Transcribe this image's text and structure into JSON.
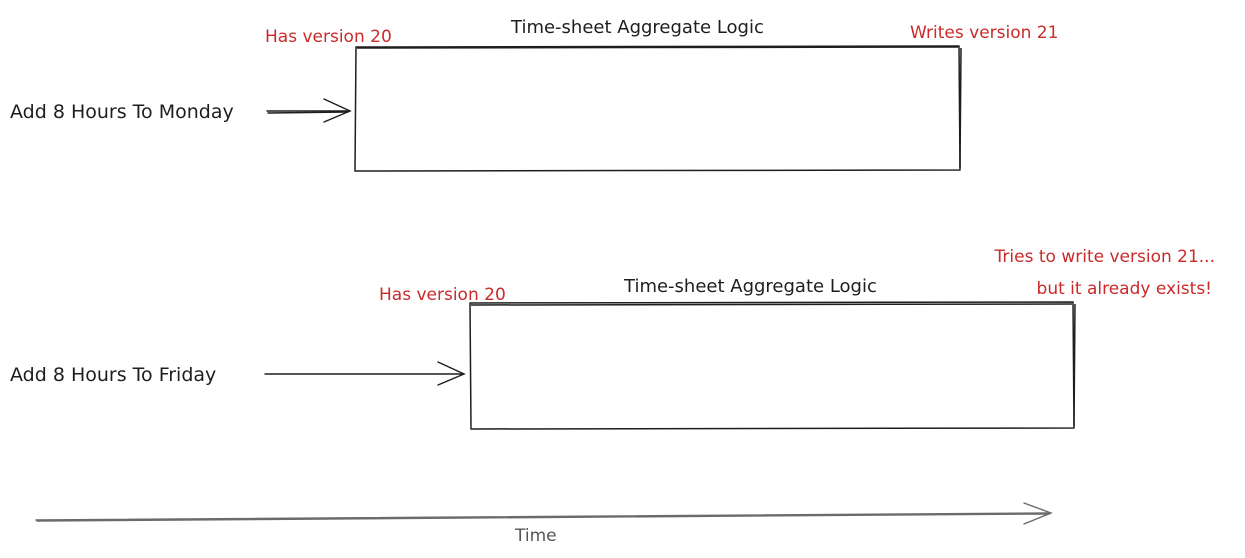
{
  "diagram": {
    "top": {
      "input_label": "Add 8 Hours To Monday",
      "box_title": "Time-sheet Aggregate Logic",
      "read_note": "Has version 20",
      "write_note": "Writes version 21"
    },
    "bottom": {
      "input_label": "Add 8 Hours To Friday",
      "box_title": "Time-sheet Aggregate Logic",
      "read_note": "Has version 20",
      "conflict_note_line1": "Tries to write version 21...",
      "conflict_note_line2": "but it already exists!"
    },
    "time_axis_label": "Time"
  },
  "colors": {
    "ink": "#1e1e1e",
    "note": "#c92a2a",
    "axis": "#6b6b6b",
    "axis_label": "#555555"
  }
}
